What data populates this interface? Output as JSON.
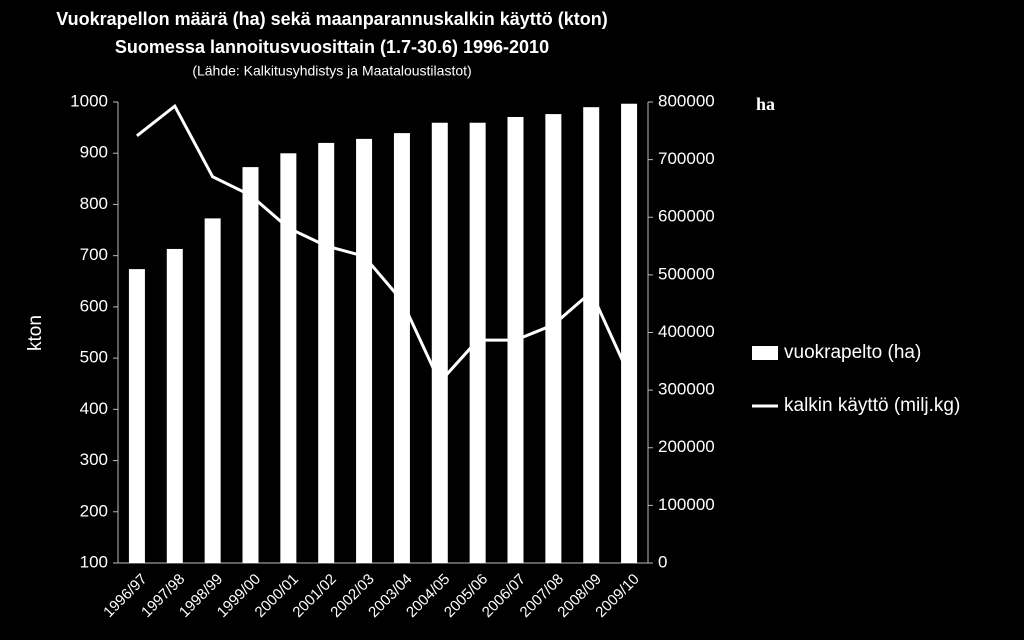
{
  "chart_data": {
    "type": "bar-line",
    "title": "Vuokrapellon määrä (ha) sekä maanparannuskalkin käyttö (kton)",
    "subtitle": "Suomessa lannoitusvuosittain (1.7-30.6) 1996-2010",
    "source": "(Lähde: Kalkitusyhdistys ja Maataloustilastot)",
    "y_label": "kton",
    "y2_label": "ha",
    "categories": [
      "1996/97",
      "1997/98",
      "1998/99",
      "1999/00",
      "2000/01",
      "2001/02",
      "2002/03",
      "2003/04",
      "2004/05",
      "2005/06",
      "2006/07",
      "2007/08",
      "2008/09",
      "2009/10"
    ],
    "series": [
      {
        "name": "vuokrapelto (ha)",
        "type": "bar",
        "axis": "y2",
        "color": "#ffffff",
        "values": [
          510000,
          545000,
          598000,
          687000,
          711000,
          729000,
          736000,
          746000,
          764000,
          764000,
          774000,
          779000,
          791000,
          797000
        ]
      },
      {
        "name": "kalkin käyttö (milj.kg)",
        "type": "line",
        "axis": "y",
        "color": "#ffffff",
        "values": [
          934,
          992,
          854,
          818,
          754,
          719,
          699,
          612,
          453,
          535,
          535,
          565,
          629,
          467
        ]
      }
    ],
    "ylim": [
      100,
      1000
    ],
    "yticks": [
      100,
      200,
      300,
      400,
      500,
      600,
      700,
      800,
      900,
      1000
    ],
    "y2lim": [
      0,
      800000
    ],
    "y2ticks": [
      0,
      100000,
      200000,
      300000,
      400000,
      500000,
      600000,
      700000,
      800000
    ],
    "grid": false,
    "legend": "right"
  }
}
